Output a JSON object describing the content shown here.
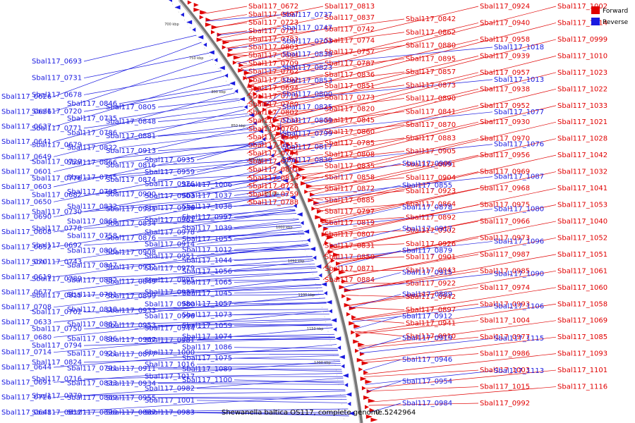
{
  "legend": {
    "forward_label": "Forward",
    "reverse_label": "Reverse",
    "forward_color": "#e00000",
    "reverse_color": "#1a1ae0"
  },
  "caption": {
    "genome": "Shewanella baltica OS117, complete genome...",
    "range": "0..5242964"
  },
  "scale_ticks": [
    "700 kbp",
    "750 kbp",
    "800 kbp",
    "850 kbp",
    "900 kbp",
    "950 kbp",
    "1000 kbp",
    "1050 kbp",
    "1100 kbp",
    "1150 kbp",
    "1200 kbp"
  ],
  "forward_genes": [
    "Sbal117_0672",
    "Sbal117_0697",
    "Sbal117_0723",
    "Sbal117_0751",
    "Sbal117_0783",
    "Sbal117_0803",
    "Sbal117_0684",
    "Sbal117_0709",
    "Sbal117_0762",
    "Sbal117_0792",
    "Sbal117_0694",
    "Sbal117_0719",
    "Sbal117_0780",
    "Sbal117_0802",
    "Sbal117_0733",
    "Sbal117_0760",
    "Sbal117_0790",
    "Sbal117_0715",
    "Sbal117_0744",
    "Sbal117_0775",
    "Sbal117_0801",
    "Sbal117_0814",
    "Sbal117_0728",
    "Sbal117_0759",
    "Sbal117_0788",
    "Sbal117_0813",
    "Sbal117_0837",
    "Sbal117_0742",
    "Sbal117_0774",
    "Sbal117_0757",
    "Sbal117_0787",
    "Sbal117_0836",
    "Sbal117_0851",
    "Sbal117_0773",
    "Sbal117_0820",
    "Sbal117_0845",
    "Sbal117_0860",
    "Sbal117_0785",
    "Sbal117_0808",
    "Sbal117_0835",
    "Sbal117_0858",
    "Sbal117_0872",
    "Sbal117_0885",
    "Sbal117_0797",
    "Sbal117_0819",
    "Sbal117_0807",
    "Sbal117_0831",
    "Sbal117_0850",
    "Sbal117_0871",
    "Sbal117_0884",
    "Sbal117_0842",
    "Sbal117_0862",
    "Sbal117_0880",
    "Sbal117_0895",
    "Sbal117_0857",
    "Sbal117_0873",
    "Sbal117_0890",
    "Sbal117_0841",
    "Sbal117_0870",
    "Sbal117_0883",
    "Sbal117_0905",
    "Sbal117_0891",
    "Sbal117_0904",
    "Sbal117_0923",
    "Sbal117_0864",
    "Sbal117_0892",
    "Sbal117_0902",
    "Sbal117_0926",
    "Sbal117_0901",
    "Sbal117_0943",
    "Sbal117_0922",
    "Sbal117_0942",
    "Sbal117_0897",
    "Sbal117_0941",
    "Sbal117_0910",
    "Sbal117_0924",
    "Sbal117_0940",
    "Sbal117_0958",
    "Sbal117_0939",
    "Sbal117_0957",
    "Sbal117_0938",
    "Sbal117_0952",
    "Sbal117_0930",
    "Sbal117_0970",
    "Sbal117_0956",
    "Sbal117_0969",
    "Sbal117_0968",
    "Sbal117_0975",
    "Sbal117_0966",
    "Sbal117_0973",
    "Sbal117_0987",
    "Sbal117_0985",
    "Sbal117_0974",
    "Sbal117_0993",
    "Sbal117_1004",
    "Sbal117_0977",
    "Sbal117_0986",
    "Sbal117_1003",
    "Sbal117_1015",
    "Sbal117_0992",
    "Sbal117_1002",
    "Sbal117_1014",
    "Sbal117_0999",
    "Sbal117_1010",
    "Sbal117_1023",
    "Sbal117_1022",
    "Sbal117_1033",
    "Sbal117_1021",
    "Sbal117_1028",
    "Sbal117_1042",
    "Sbal117_1032",
    "Sbal117_1041",
    "Sbal117_1053",
    "Sbal117_1040",
    "Sbal117_1052",
    "Sbal117_1051",
    "Sbal117_1061",
    "Sbal117_1060",
    "Sbal117_1058",
    "Sbal117_1069",
    "Sbal117_1085",
    "Sbal117_1093",
    "Sbal117_1101",
    "Sbal117_1116"
  ],
  "reverse_genes_right": [
    "Sbal117_0737",
    "Sbal117_0747",
    "Sbal117_0703",
    "Sbal117_0838",
    "Sbal117_0823",
    "Sbal117_0853",
    "Sbal117_0800",
    "Sbal117_0825",
    "Sbal117_0809",
    "Sbal117_0799",
    "Sbal117_0817",
    "Sbal117_0830",
    "Sbal117_0906",
    "Sbal117_0855",
    "Sbal117_0878",
    "Sbal117_0917",
    "Sbal117_0879",
    "Sbal117_0915",
    "Sbal117_0889",
    "Sbal117_0912",
    "Sbal117_0919",
    "Sbal117_0946",
    "Sbal117_0954",
    "Sbal117_0984",
    "Sbal117_1018",
    "Sbal117_1013",
    "Sbal117_1077",
    "Sbal117_1076",
    "Sbal117_1087",
    "Sbal117_1080",
    "Sbal117_1096",
    "Sbal117_1090",
    "Sbal117_1106",
    "Sbal117_1115",
    "Sbal117_1113"
  ],
  "reverse_genes_left": [
    "Sbal117_0626",
    "Sbal117_0636",
    "Sbal117_0637",
    "Sbal117_0641",
    "Sbal117_0649",
    "Sbal117_0601",
    "Sbal117_0603",
    "Sbal117_0650",
    "Sbal117_0690",
    "Sbal117_0608",
    "Sbal117_0652",
    "Sbal117_0701",
    "Sbal117_0619",
    "Sbal117_0677",
    "Sbal117_0708",
    "Sbal117_0633",
    "Sbal117_0680",
    "Sbal117_0714",
    "Sbal117_0644",
    "Sbal117_0691",
    "Sbal117_0726",
    "Sbal117_0648",
    "Sbal117_0693",
    "Sbal117_0731",
    "Sbal117_0678",
    "Sbal117_0720",
    "Sbal117_0771",
    "Sbal117_0679",
    "Sbal117_0729",
    "Sbal117_0776",
    "Sbal117_0682",
    "Sbal117_0730",
    "Sbal117_0778",
    "Sbal117_0692",
    "Sbal117_0743",
    "Sbal117_0789",
    "Sbal117_0815",
    "Sbal117_0702",
    "Sbal117_0750",
    "Sbal117_0794",
    "Sbal117_0824",
    "Sbal117_0716",
    "Sbal117_0779",
    "Sbal117_0812",
    "Sbal117_0846",
    "Sbal117_0735",
    "Sbal117_0786",
    "Sbal117_0822",
    "Sbal117_0866",
    "Sbal117_0745",
    "Sbal117_0798",
    "Sbal117_0832",
    "Sbal117_0868",
    "Sbal117_0758",
    "Sbal117_0806",
    "Sbal117_0847",
    "Sbal117_0882",
    "Sbal117_0781",
    "Sbal117_0818",
    "Sbal117_0867",
    "Sbal117_0896",
    "Sbal117_0921",
    "Sbal117_0791",
    "Sbal117_0833",
    "Sbal117_0869",
    "Sbal117_0898",
    "Sbal117_0805",
    "Sbal117_0848",
    "Sbal117_0881",
    "Sbal117_0913",
    "Sbal117_0816",
    "Sbal117_0874",
    "Sbal117_0900",
    "Sbal117_0931",
    "Sbal117_0834",
    "Sbal117_0876",
    "Sbal117_0908",
    "Sbal117_0932",
    "Sbal117_0849",
    "Sbal117_0899",
    "Sbal117_0933",
    "Sbal117_0953",
    "Sbal117_0967",
    "Sbal117_0877",
    "Sbal117_0911",
    "Sbal117_0934",
    "Sbal117_0955",
    "Sbal117_0887",
    "Sbal117_0935",
    "Sbal117_0959",
    "Sbal117_0976",
    "Sbal117_0903",
    "Sbal117_0936",
    "Sbal117_0961",
    "Sbal117_0978",
    "Sbal117_0914",
    "Sbal117_0951",
    "Sbal117_0979",
    "Sbal117_0995",
    "Sbal117_0937",
    "Sbal117_0980",
    "Sbal117_0996",
    "Sbal117_0944",
    "Sbal117_0981",
    "Sbal117_1000",
    "Sbal117_1016",
    "Sbal117_1017",
    "Sbal117_0982",
    "Sbal117_1001",
    "Sbal117_0983",
    "Sbal117_1006",
    "Sbal117_1037",
    "Sbal117_1038",
    "Sbal117_0997",
    "Sbal117_1039",
    "Sbal117_1055",
    "Sbal117_1012",
    "Sbal117_1044",
    "Sbal117_1056",
    "Sbal117_1065",
    "Sbal117_1045",
    "Sbal117_1057",
    "Sbal117_1073",
    "Sbal117_1059",
    "Sbal117_1074",
    "Sbal117_1086",
    "Sbal117_1075",
    "Sbal117_1089",
    "Sbal117_1100"
  ]
}
